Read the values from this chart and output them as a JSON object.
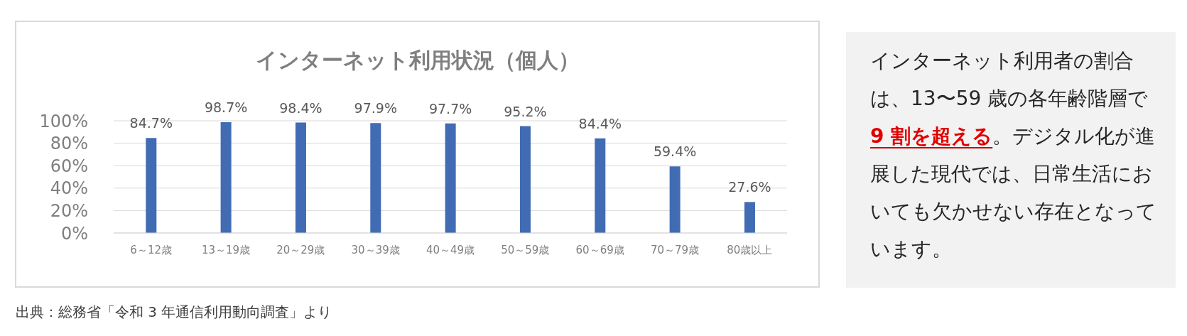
{
  "chart_data": [
    {
      "type": "bar",
      "title": "インターネット利用状況（個人）",
      "categories": [
        "6～12歳",
        "13～19歳",
        "20～29歳",
        "30～39歳",
        "40～49歳",
        "50～59歳",
        "60～69歳",
        "70～79歳",
        "80歳以上"
      ],
      "values": [
        84.7,
        98.7,
        98.4,
        97.9,
        97.7,
        95.2,
        84.4,
        59.4,
        27.6
      ],
      "value_labels": [
        "84.7%",
        "98.7%",
        "98.4%",
        "97.9%",
        "97.7%",
        "95.2%",
        "84.4%",
        "59.4%",
        "27.6%"
      ],
      "color": "#416bb3",
      "ylim": [
        0,
        100
      ],
      "yticks": [
        {
          "value": 0,
          "label": "0%"
        },
        {
          "value": 20,
          "label": "20%"
        },
        {
          "value": 40,
          "label": "40%"
        },
        {
          "value": 60,
          "label": "60%"
        },
        {
          "value": 80,
          "label": "80%"
        },
        {
          "value": 100,
          "label": "100%"
        }
      ],
      "grid": "y",
      "legend": false,
      "annotations": [
        "出典：総務省「令和 3 年通信利用動向調査」より"
      ]
    },
    {
      "type": "other",
      "annotations": [
        "インターネット利用者の割合は、13〜59 歳の各年齢階層で",
        "9 割を超える",
        "。デジタル化が進展した現代では、日常生活においても欠かせない存在となっています。"
      ]
    }
  ]
}
